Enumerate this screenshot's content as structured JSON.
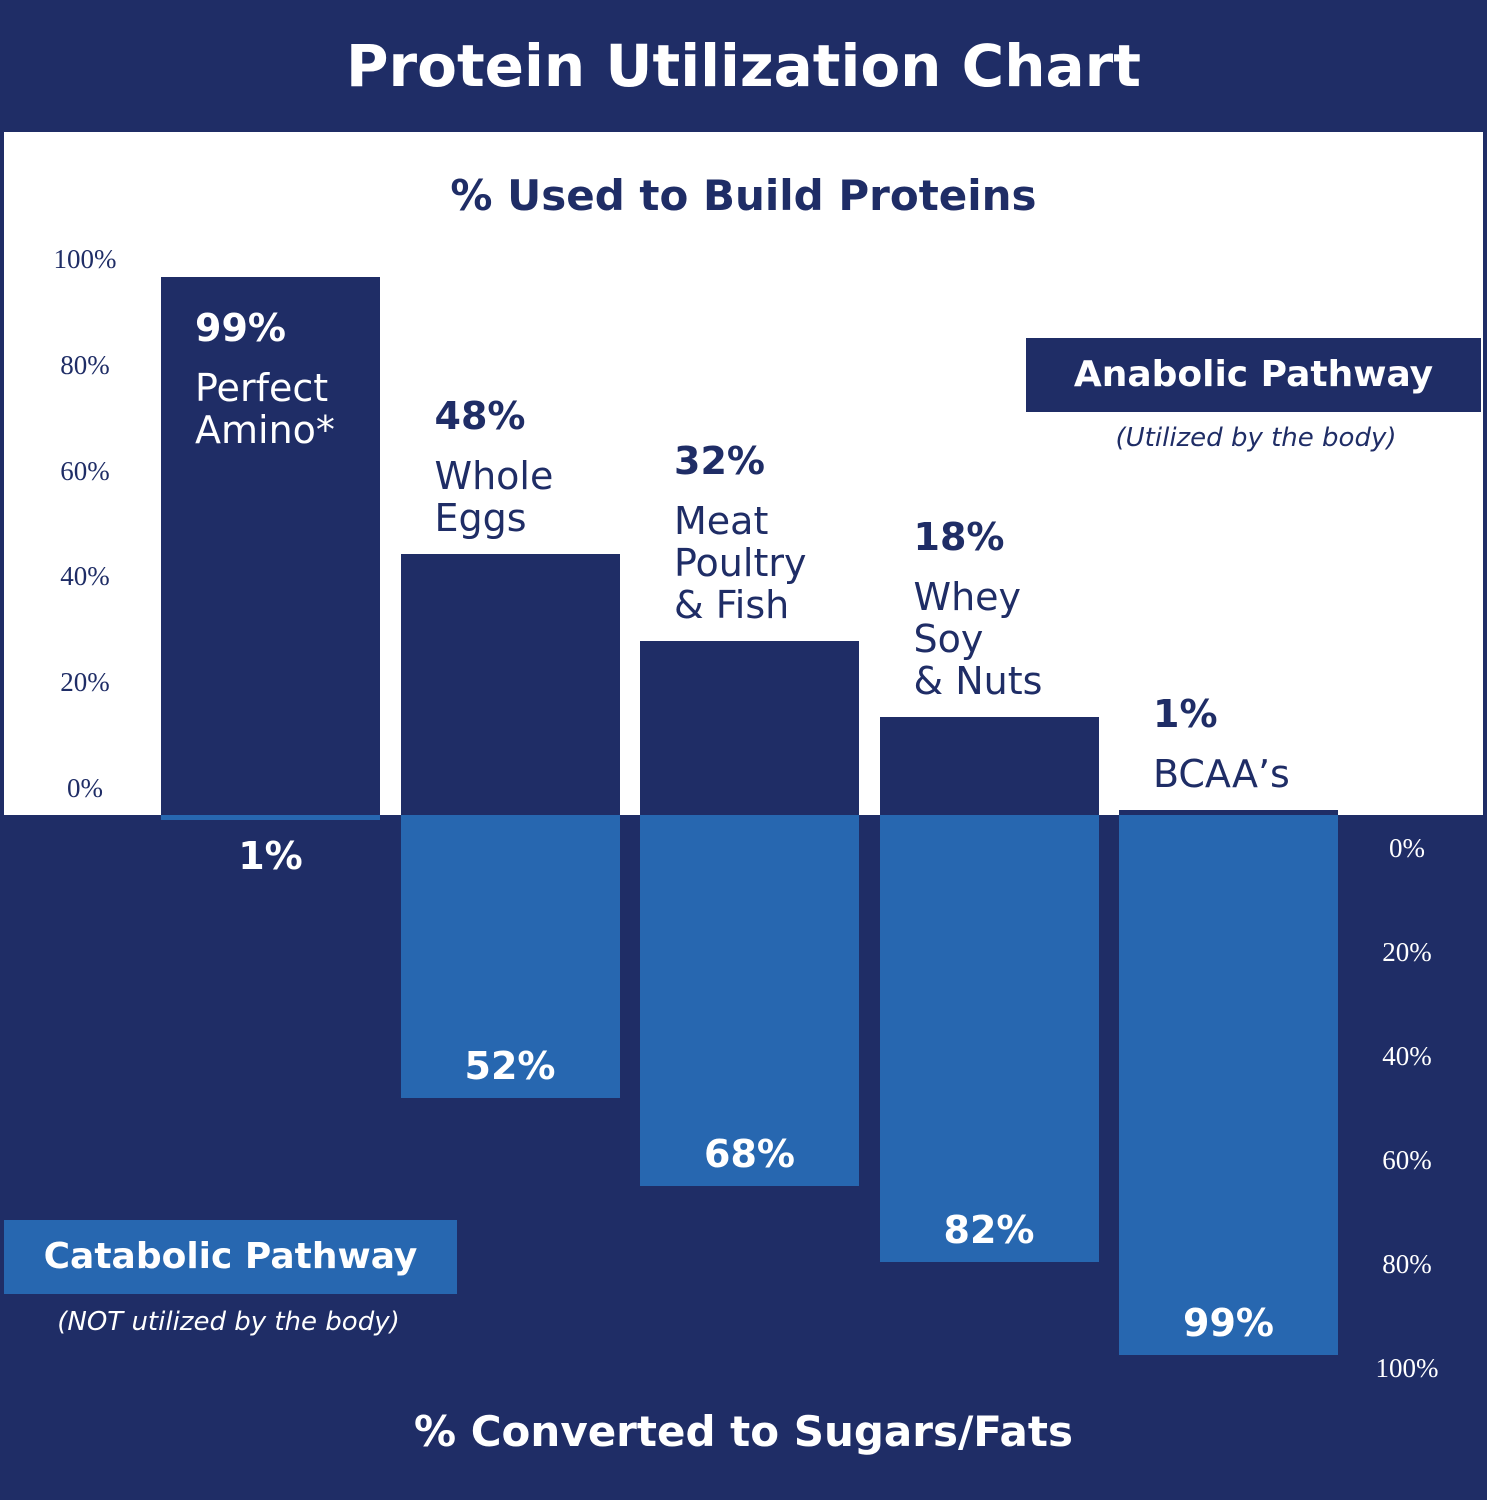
{
  "chart_data": {
    "type": "diverging-bar",
    "title": "Protein Utilization Chart",
    "top_axis_title": "% Used to Build Proteins",
    "bottom_axis_title": "% Converted to Sugars/Fats",
    "categories": [
      "Perfect\nAmino*",
      "Whole\nEggs",
      "Meat\nPoultry\n& Fish",
      "Whey\nSoy\n& Nuts",
      "BCAA’s"
    ],
    "series": [
      {
        "name": "Anabolic Pathway",
        "note": "(Utilized by the body)",
        "color": "#1f2d66",
        "values": [
          99,
          48,
          32,
          18,
          1
        ],
        "value_labels": [
          "99%",
          "48%",
          "32%",
          "18%",
          "1%"
        ]
      },
      {
        "name": "Catabolic Pathway",
        "note": "(NOT utilized by the body)",
        "color": "#2767b0",
        "axis": "y2",
        "values": [
          1,
          52,
          68,
          82,
          99
        ],
        "value_labels": [
          "1%",
          "52%",
          "68%",
          "82%",
          "99%"
        ]
      }
    ],
    "ylim": [
      0,
      100
    ],
    "yticks": [
      {
        "value": 0,
        "label": "0%"
      },
      {
        "value": 20,
        "label": "20%"
      },
      {
        "value": 40,
        "label": "40%"
      },
      {
        "value": 60,
        "label": "60%"
      },
      {
        "value": 80,
        "label": "80%"
      },
      {
        "value": 100,
        "label": "100%"
      }
    ],
    "y2lim": [
      0,
      100
    ],
    "y2ticks": [
      {
        "value": 0,
        "label": "0%"
      },
      {
        "value": 20,
        "label": "20%"
      },
      {
        "value": 40,
        "label": "40%"
      },
      {
        "value": 60,
        "label": "60%"
      },
      {
        "value": 80,
        "label": "80%"
      },
      {
        "value": 100,
        "label": "100%"
      }
    ]
  }
}
